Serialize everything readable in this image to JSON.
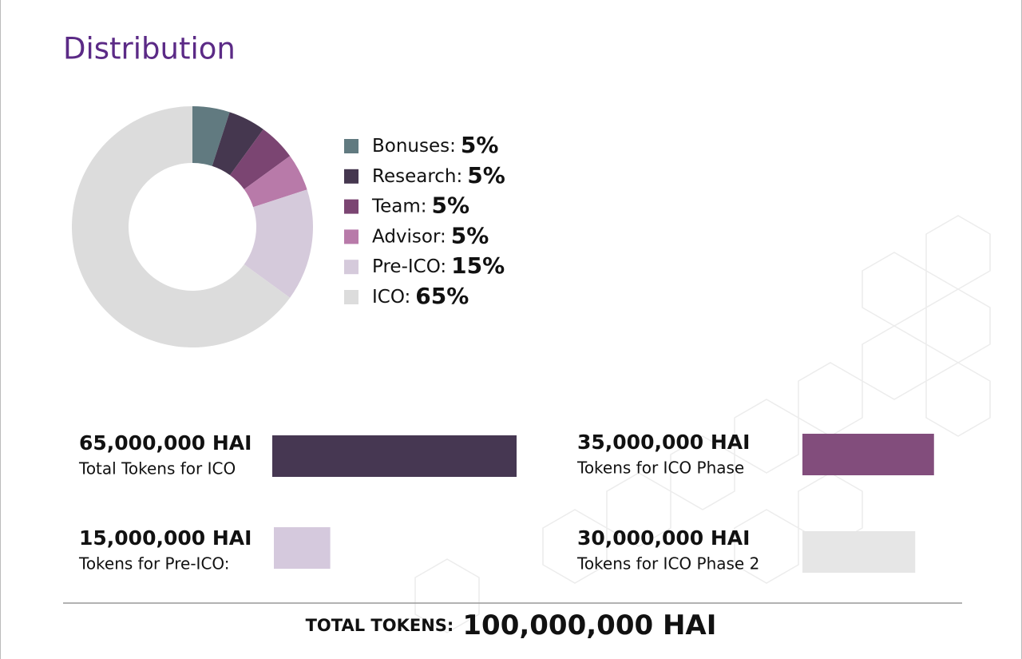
{
  "title": "Distribution",
  "chart_data": [
    {
      "type": "donut",
      "categories": [
        "Bonuses:",
        "Research:",
        "Team:",
        "Advisor:",
        "Pre-ICO:",
        "ICO:"
      ],
      "values": [
        5,
        5,
        5,
        5,
        15,
        65
      ],
      "value_labels": [
        "5%",
        "5%",
        "5%",
        "5%",
        "15%",
        "65%"
      ],
      "colors": [
        "#617a80",
        "#45374f",
        "#7b4572",
        "#b87aa9",
        "#d5cadb",
        "#dcdcdc"
      ]
    },
    {
      "type": "bar",
      "categories": [
        "Total Tokens for ICO",
        "Tokens for ICO Phase",
        "Tokens for Pre-ICO:",
        "Tokens for ICO Phase 2"
      ],
      "values": [
        65000000,
        35000000,
        15000000,
        30000000
      ],
      "value_labels": [
        "65,000,000 HAI",
        "35,000,000 HAI",
        "15,000,000 HAI",
        "30,000,000 HAI"
      ],
      "colors": [
        "#463752",
        "#824d7c",
        "#d5c9dd",
        "#e6e6e6"
      ]
    }
  ],
  "footer": {
    "label": "TOTAL TOKENS:",
    "value": "100,000,000 HAI"
  }
}
